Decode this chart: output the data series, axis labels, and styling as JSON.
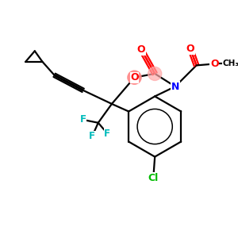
{
  "bg_color": "#ffffff",
  "atom_colors": {
    "O": "#ff0000",
    "N": "#0000ff",
    "Cl": "#00bb00",
    "F": "#00bbbb",
    "C": "#000000"
  },
  "bond_lw": 1.6,
  "highlight_O_color": "#ff8888",
  "highlight_C_color": "#ffaaaa"
}
